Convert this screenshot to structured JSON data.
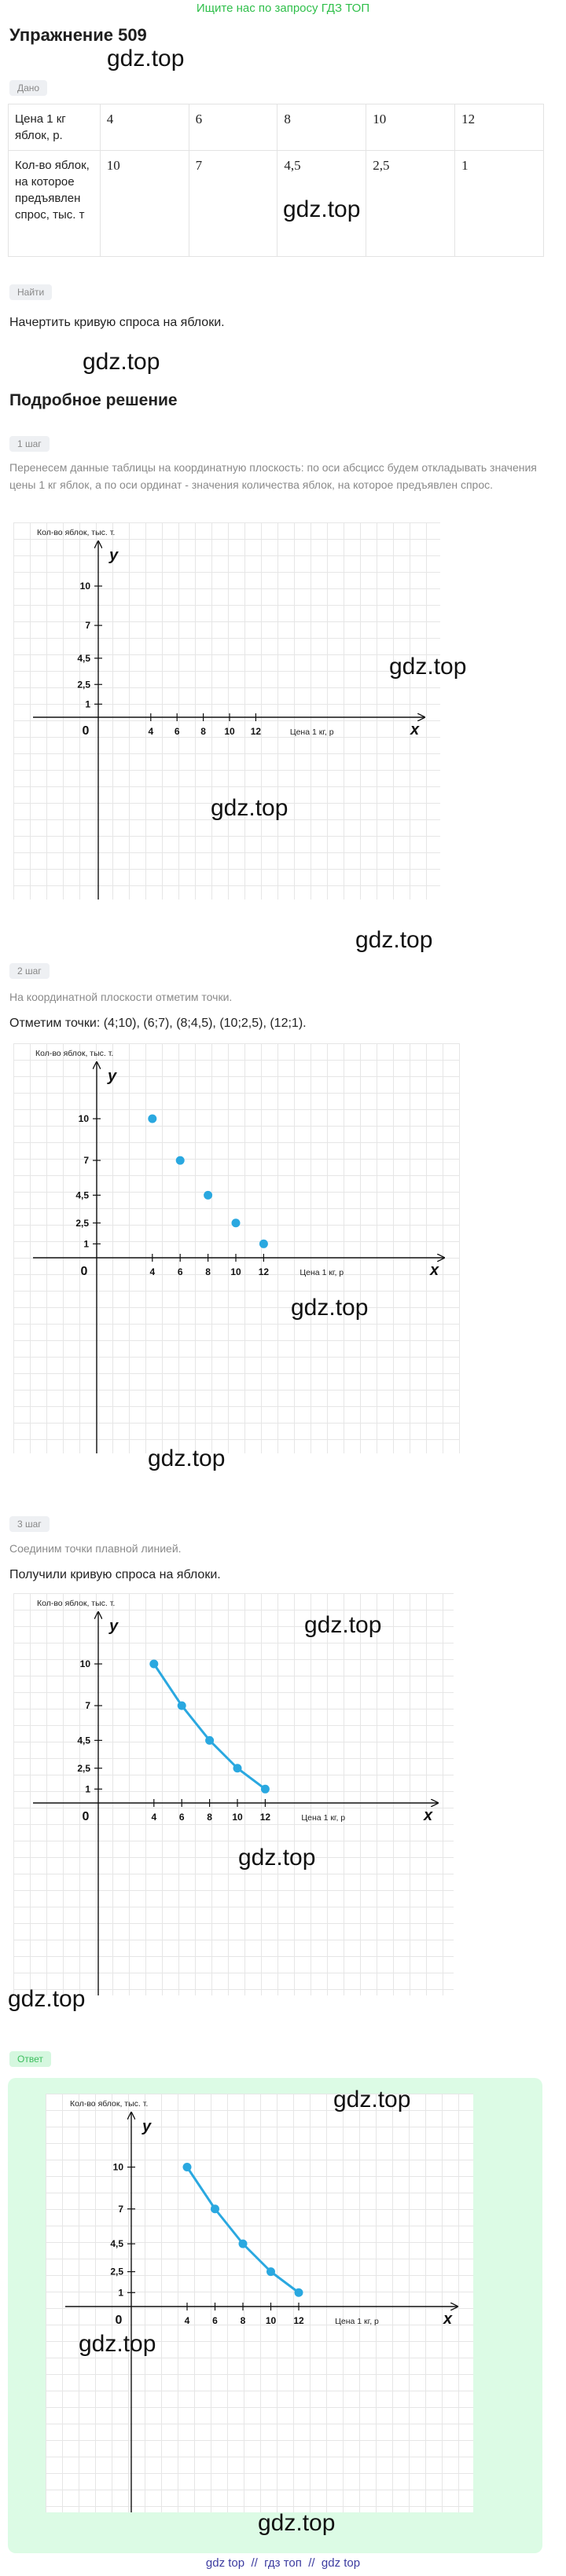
{
  "banner": "Ищите нас по запросу ГДЗ ТОП",
  "title": "Упражнение 509",
  "given": {
    "tag": "Дано",
    "table": {
      "rows": [
        [
          "Цена 1 кг яблок, р.",
          "4",
          "6",
          "8",
          "10",
          "12"
        ],
        [
          "Кол-во яблок, на которое предъявлен спрос, тыс. т",
          "10",
          "7",
          "4,5",
          "2,5",
          "1"
        ]
      ]
    }
  },
  "find": {
    "tag": "Найти",
    "text": "Начертить кривую спроса на яблоки."
  },
  "solution": {
    "heading": "Подробное решение",
    "steps": [
      {
        "tag": "1 шаг",
        "text": "Перенесем данные таблицы на координатную плоскость: по оси абсцисс будем откладывать значения цены 1 кг яблок, а по оси ординат - значения количества яблок, на которое предъявлен спрос.",
        "chart": {
          "type": "axes",
          "y_label": "Кол-во яблок, тыс. т.",
          "x_label": "Цена 1 кг, р",
          "y_letter": "y",
          "x_letter": "x",
          "origin_label": "0",
          "xticks": [
            4,
            6,
            8,
            10,
            12
          ],
          "yticks": [
            1,
            {
              "value": 2.5,
              "label": "2,5"
            },
            {
              "value": 4.5,
              "label": "4,5"
            },
            7,
            10
          ]
        }
      },
      {
        "tag": "2 шаг",
        "text": "На координатной плоскости отметим точки.",
        "text2": "Отметим точки: (4;10), (6;7), (8;4,5), (10;2,5), (12;1).",
        "chart": {
          "type": "scatter",
          "y_label": "Кол-во яблок, тыс. т.",
          "x_label": "Цена 1 кг, р",
          "y_letter": "y",
          "x_letter": "x",
          "origin_label": "0",
          "xticks": [
            4,
            6,
            8,
            10,
            12
          ],
          "yticks": [
            1,
            {
              "value": 2.5,
              "label": "2,5"
            },
            {
              "value": 4.5,
              "label": "4,5"
            },
            7,
            10
          ],
          "x": [
            4,
            6,
            8,
            10,
            12
          ],
          "y": [
            10,
            7,
            4.5,
            2.5,
            1
          ],
          "color": "#2aa8e0"
        }
      },
      {
        "tag": "3 шаг",
        "text": "Соединим точки плавной линией.",
        "text2": "Получили кривую спроса на яблоки.",
        "chart": {
          "type": "line",
          "y_label": "Кол-во яблок, тыс. т.",
          "x_label": "Цена 1 кг, р",
          "y_letter": "y",
          "x_letter": "x",
          "origin_label": "0",
          "xticks": [
            4,
            6,
            8,
            10,
            12
          ],
          "yticks": [
            1,
            {
              "value": 2.5,
              "label": "2,5"
            },
            {
              "value": 4.5,
              "label": "4,5"
            },
            7,
            10
          ],
          "x": [
            4,
            6,
            8,
            10,
            12
          ],
          "y": [
            10,
            7,
            4.5,
            2.5,
            1
          ],
          "color": "#2aa8e0"
        }
      }
    ]
  },
  "answer": {
    "tag": "Ответ",
    "chart": {
      "type": "line",
      "y_label": "Кол-во яблок, тыс. т.",
      "x_label": "Цена 1 кг, р",
      "y_letter": "y",
      "x_letter": "x",
      "origin_label": "0",
      "xticks": [
        4,
        6,
        8,
        10,
        12
      ],
      "yticks": [
        1,
        {
          "value": 2.5,
          "label": "2,5"
        },
        {
          "value": 4.5,
          "label": "4,5"
        },
        7,
        10
      ],
      "x": [
        4,
        6,
        8,
        10,
        12
      ],
      "y": [
        10,
        7,
        4.5,
        2.5,
        1
      ],
      "color": "#2aa8e0"
    }
  },
  "watermarks": [
    "gdz.top",
    "gdz.top",
    "gdz.top",
    "gdz.top",
    "gdz.top",
    "gdz.top",
    "gdz.top",
    "gdz.top",
    "gdz.top",
    "gdz.top",
    "gdz.top",
    "gdz.top",
    "gdz.top",
    "gdz.top"
  ],
  "footer": "gdz top  //  гдз топ  //  gdz top"
}
